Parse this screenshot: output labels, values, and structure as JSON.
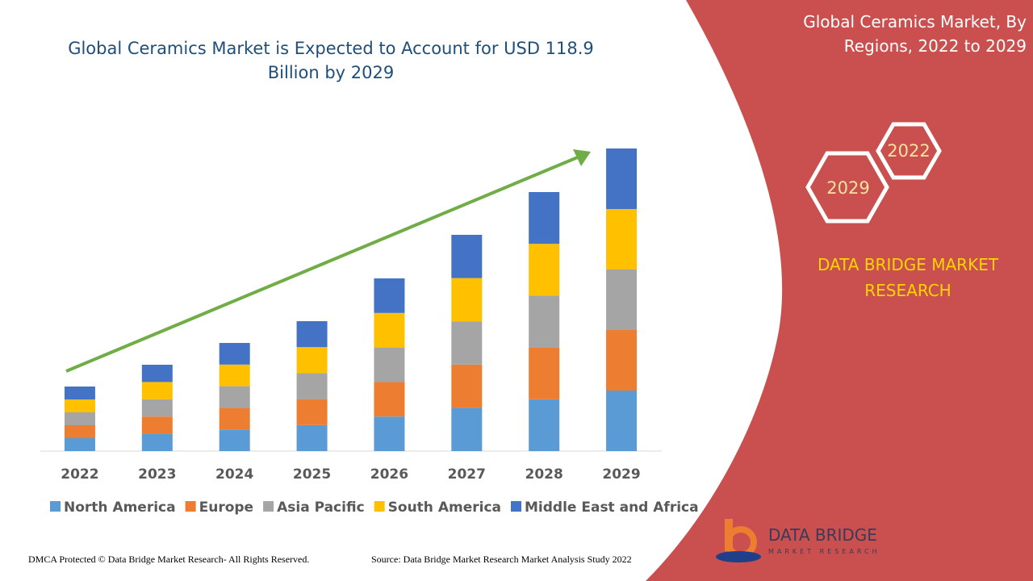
{
  "chart_data": {
    "type": "bar",
    "stacked": true,
    "title": "Global Ceramics Market is Expected to Account for USD 118.9 Billion by 2029",
    "categories": [
      "2022",
      "2023",
      "2024",
      "2025",
      "2026",
      "2027",
      "2028",
      "2029"
    ],
    "series": [
      {
        "name": "North America",
        "color": "#5b9bd5",
        "values": [
          16,
          21.4,
          26.8,
          32.2,
          42.8,
          53.6,
          64.2,
          75
        ]
      },
      {
        "name": "Europe",
        "color": "#ed7d31",
        "values": [
          16,
          21.4,
          26.8,
          32.2,
          42.8,
          53.6,
          64.2,
          75
        ]
      },
      {
        "name": "Asia Pacific",
        "color": "#a5a5a5",
        "values": [
          16,
          21.4,
          26.8,
          32.2,
          42.8,
          53.6,
          64.2,
          75
        ]
      },
      {
        "name": "South America",
        "color": "#ffc000",
        "values": [
          16,
          21.4,
          26.8,
          32.2,
          42.8,
          53.6,
          64.2,
          75
        ]
      },
      {
        "name": "Middle East and Africa",
        "color": "#4472c4",
        "values": [
          16,
          21.4,
          26.8,
          32.2,
          42.8,
          53.6,
          64.2,
          75
        ]
      }
    ]
  },
  "panel": {
    "title": "Global Ceramics Market, By Regions, 2022 to 2029",
    "hex_start": "2022",
    "hex_end": "2029",
    "brand": "DATA BRIDGE MARKET RESEARCH"
  },
  "logo": {
    "name": "DATA BRIDGE",
    "tagline": "MARKET RESEARCH"
  },
  "footer": {
    "copyright": "DMCA Protected © Data Bridge Market Research- All Rights Reserved.",
    "source": "Source: Data Bridge Market Research Market Analysis Study 2022"
  }
}
